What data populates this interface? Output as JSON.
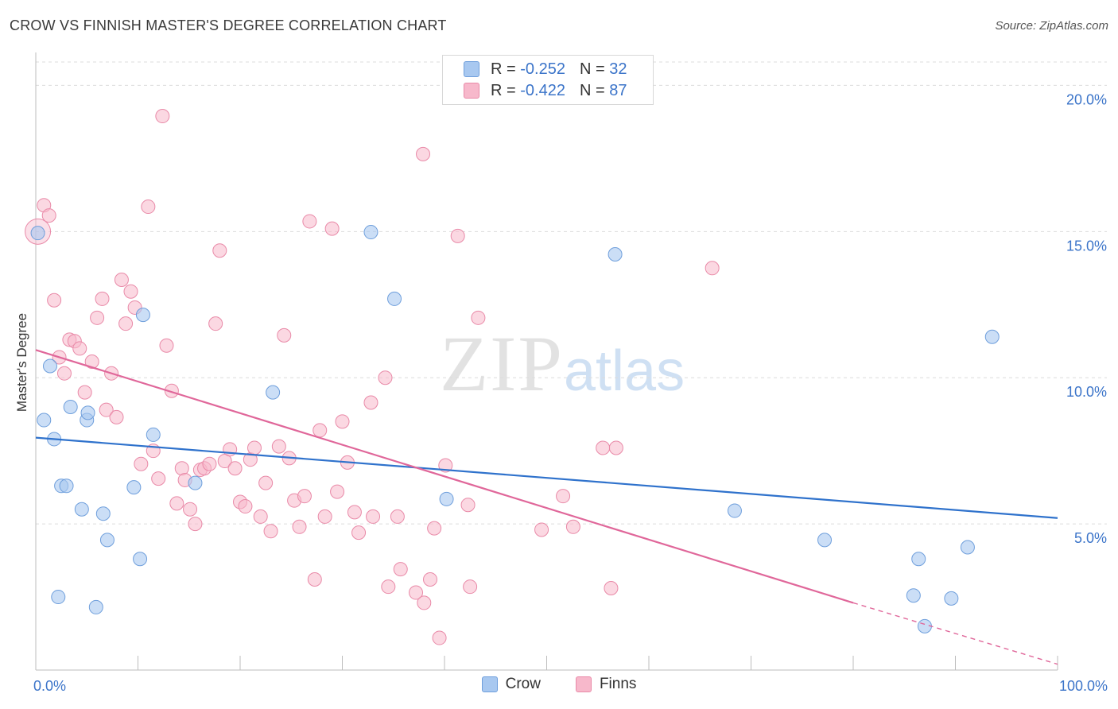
{
  "header": {
    "title": "CROW VS FINNISH MASTER'S DEGREE CORRELATION CHART",
    "source": "Source: ZipAtlas.com"
  },
  "watermark": {
    "zip": "ZIP",
    "atlas": "atlas"
  },
  "legend": {
    "rows": [
      {
        "r_label": "R =",
        "r_value": "-0.252",
        "n_label": "N =",
        "n_value": "32",
        "color": "#a8c8f0"
      },
      {
        "r_label": "R =",
        "r_value": "-0.422",
        "n_label": "N =",
        "n_value": "87",
        "color": "#f7b8cb"
      }
    ]
  },
  "bottom_legend": [
    {
      "name": "Crow",
      "color": "#a8c8f0"
    },
    {
      "name": "Finns",
      "color": "#f7b8cb"
    }
  ],
  "colors": {
    "crow_fill": "#a8c8f0",
    "crow_stroke": "#6f9fdc",
    "crow_line": "#2f72cc",
    "finns_fill": "#f7b8cb",
    "finns_stroke": "#e98aa8",
    "finns_line": "#e0679a",
    "tick_label": "#3b74c9",
    "grid": "#dcdcdc"
  },
  "chart_data": {
    "type": "scatter",
    "title": "CROW VS FINNISH MASTER'S DEGREE CORRELATION CHART",
    "xlabel": "",
    "ylabel": "Master's Degree",
    "xlim": [
      0,
      100
    ],
    "ylim": [
      0,
      20.8
    ],
    "x_tick_labels": [
      "0.0%",
      "100.0%"
    ],
    "y_ticks": [
      5,
      10,
      15,
      20
    ],
    "y_tick_labels": [
      "5.0%",
      "10.0%",
      "15.0%",
      "20.0%"
    ],
    "grid": true,
    "legend_position": "top-center",
    "series": [
      {
        "name": "Crow",
        "r": -0.252,
        "n": 32,
        "trend": {
          "x": [
            0,
            100
          ],
          "y": [
            7.95,
            5.2
          ]
        },
        "points": [
          {
            "x": 0.2,
            "y": 14.95
          },
          {
            "x": 0.8,
            "y": 8.55
          },
          {
            "x": 1.4,
            "y": 10.4
          },
          {
            "x": 1.8,
            "y": 7.9
          },
          {
            "x": 2.2,
            "y": 2.5
          },
          {
            "x": 2.5,
            "y": 6.3
          },
          {
            "x": 3.0,
            "y": 6.3
          },
          {
            "x": 3.4,
            "y": 9.0
          },
          {
            "x": 4.5,
            "y": 5.5
          },
          {
            "x": 5.0,
            "y": 8.55
          },
          {
            "x": 5.1,
            "y": 8.8
          },
          {
            "x": 5.9,
            "y": 2.15
          },
          {
            "x": 6.6,
            "y": 5.35
          },
          {
            "x": 7.0,
            "y": 4.45
          },
          {
            "x": 9.6,
            "y": 6.25
          },
          {
            "x": 10.2,
            "y": 3.8
          },
          {
            "x": 10.5,
            "y": 12.15
          },
          {
            "x": 11.5,
            "y": 8.05
          },
          {
            "x": 15.6,
            "y": 6.4
          },
          {
            "x": 23.2,
            "y": 9.5
          },
          {
            "x": 32.8,
            "y": 14.98
          },
          {
            "x": 35.1,
            "y": 12.7
          },
          {
            "x": 40.2,
            "y": 5.85
          },
          {
            "x": 56.7,
            "y": 14.22
          },
          {
            "x": 68.4,
            "y": 5.45
          },
          {
            "x": 77.2,
            "y": 4.45
          },
          {
            "x": 85.9,
            "y": 2.55
          },
          {
            "x": 86.4,
            "y": 3.8
          },
          {
            "x": 87.0,
            "y": 1.5
          },
          {
            "x": 89.6,
            "y": 2.45
          },
          {
            "x": 91.2,
            "y": 4.2
          },
          {
            "x": 93.6,
            "y": 11.4
          }
        ]
      },
      {
        "name": "Finns",
        "r": -0.422,
        "n": 87,
        "trend": {
          "x": [
            0,
            80
          ],
          "y": [
            10.95,
            2.3
          ]
        },
        "trend_extension": {
          "x": [
            80,
            100
          ],
          "y": [
            2.3,
            0.2
          ]
        },
        "points": [
          {
            "x": 0.2,
            "y": 15.0
          },
          {
            "x": 0.8,
            "y": 15.9
          },
          {
            "x": 1.3,
            "y": 15.55
          },
          {
            "x": 1.8,
            "y": 12.65
          },
          {
            "x": 2.3,
            "y": 10.7
          },
          {
            "x": 2.8,
            "y": 10.15
          },
          {
            "x": 3.3,
            "y": 11.3
          },
          {
            "x": 3.8,
            "y": 11.25
          },
          {
            "x": 4.3,
            "y": 11.0
          },
          {
            "x": 4.8,
            "y": 9.5
          },
          {
            "x": 5.5,
            "y": 10.55
          },
          {
            "x": 6.0,
            "y": 12.05
          },
          {
            "x": 6.5,
            "y": 12.7
          },
          {
            "x": 6.9,
            "y": 8.9
          },
          {
            "x": 7.4,
            "y": 10.15
          },
          {
            "x": 7.9,
            "y": 8.65
          },
          {
            "x": 8.4,
            "y": 13.35
          },
          {
            "x": 8.8,
            "y": 11.85
          },
          {
            "x": 9.3,
            "y": 12.95
          },
          {
            "x": 9.7,
            "y": 12.4
          },
          {
            "x": 10.3,
            "y": 7.05
          },
          {
            "x": 11.0,
            "y": 15.85
          },
          {
            "x": 11.5,
            "y": 7.5
          },
          {
            "x": 12.0,
            "y": 6.55
          },
          {
            "x": 12.4,
            "y": 18.95
          },
          {
            "x": 12.8,
            "y": 11.1
          },
          {
            "x": 13.3,
            "y": 9.55
          },
          {
            "x": 13.8,
            "y": 5.7
          },
          {
            "x": 14.3,
            "y": 6.9
          },
          {
            "x": 14.6,
            "y": 6.5
          },
          {
            "x": 15.1,
            "y": 5.5
          },
          {
            "x": 15.6,
            "y": 5.0
          },
          {
            "x": 16.1,
            "y": 6.85
          },
          {
            "x": 16.5,
            "y": 6.9
          },
          {
            "x": 17.0,
            "y": 7.05
          },
          {
            "x": 17.6,
            "y": 11.85
          },
          {
            "x": 18.0,
            "y": 14.35
          },
          {
            "x": 18.5,
            "y": 7.15
          },
          {
            "x": 19.0,
            "y": 7.55
          },
          {
            "x": 19.5,
            "y": 6.9
          },
          {
            "x": 20.0,
            "y": 5.75
          },
          {
            "x": 20.5,
            "y": 5.6
          },
          {
            "x": 21.0,
            "y": 7.2
          },
          {
            "x": 21.4,
            "y": 7.6
          },
          {
            "x": 22.0,
            "y": 5.25
          },
          {
            "x": 22.5,
            "y": 6.4
          },
          {
            "x": 23.0,
            "y": 4.75
          },
          {
            "x": 23.8,
            "y": 7.65
          },
          {
            "x": 24.3,
            "y": 11.45
          },
          {
            "x": 24.8,
            "y": 7.25
          },
          {
            "x": 25.3,
            "y": 5.8
          },
          {
            "x": 25.8,
            "y": 4.9
          },
          {
            "x": 26.3,
            "y": 5.95
          },
          {
            "x": 26.8,
            "y": 15.35
          },
          {
            "x": 27.3,
            "y": 3.1
          },
          {
            "x": 27.8,
            "y": 8.2
          },
          {
            "x": 28.3,
            "y": 5.25
          },
          {
            "x": 29.0,
            "y": 15.1
          },
          {
            "x": 29.5,
            "y": 6.1
          },
          {
            "x": 30.0,
            "y": 8.5
          },
          {
            "x": 30.5,
            "y": 7.1
          },
          {
            "x": 31.2,
            "y": 5.4
          },
          {
            "x": 31.6,
            "y": 4.7
          },
          {
            "x": 32.8,
            "y": 9.15
          },
          {
            "x": 33.0,
            "y": 5.25
          },
          {
            "x": 34.2,
            "y": 10.0
          },
          {
            "x": 34.5,
            "y": 2.85
          },
          {
            "x": 35.4,
            "y": 5.25
          },
          {
            "x": 35.7,
            "y": 3.45
          },
          {
            "x": 37.2,
            "y": 2.65
          },
          {
            "x": 37.9,
            "y": 17.65
          },
          {
            "x": 38.0,
            "y": 2.3
          },
          {
            "x": 38.6,
            "y": 3.1
          },
          {
            "x": 39.0,
            "y": 4.85
          },
          {
            "x": 39.5,
            "y": 1.1
          },
          {
            "x": 40.1,
            "y": 7.0
          },
          {
            "x": 41.3,
            "y": 14.85
          },
          {
            "x": 42.3,
            "y": 5.65
          },
          {
            "x": 42.5,
            "y": 2.85
          },
          {
            "x": 43.3,
            "y": 12.05
          },
          {
            "x": 49.5,
            "y": 4.8
          },
          {
            "x": 51.6,
            "y": 5.95
          },
          {
            "x": 52.6,
            "y": 4.9
          },
          {
            "x": 55.5,
            "y": 7.6
          },
          {
            "x": 56.3,
            "y": 2.8
          },
          {
            "x": 56.8,
            "y": 7.6
          },
          {
            "x": 66.2,
            "y": 13.75
          }
        ]
      }
    ]
  }
}
